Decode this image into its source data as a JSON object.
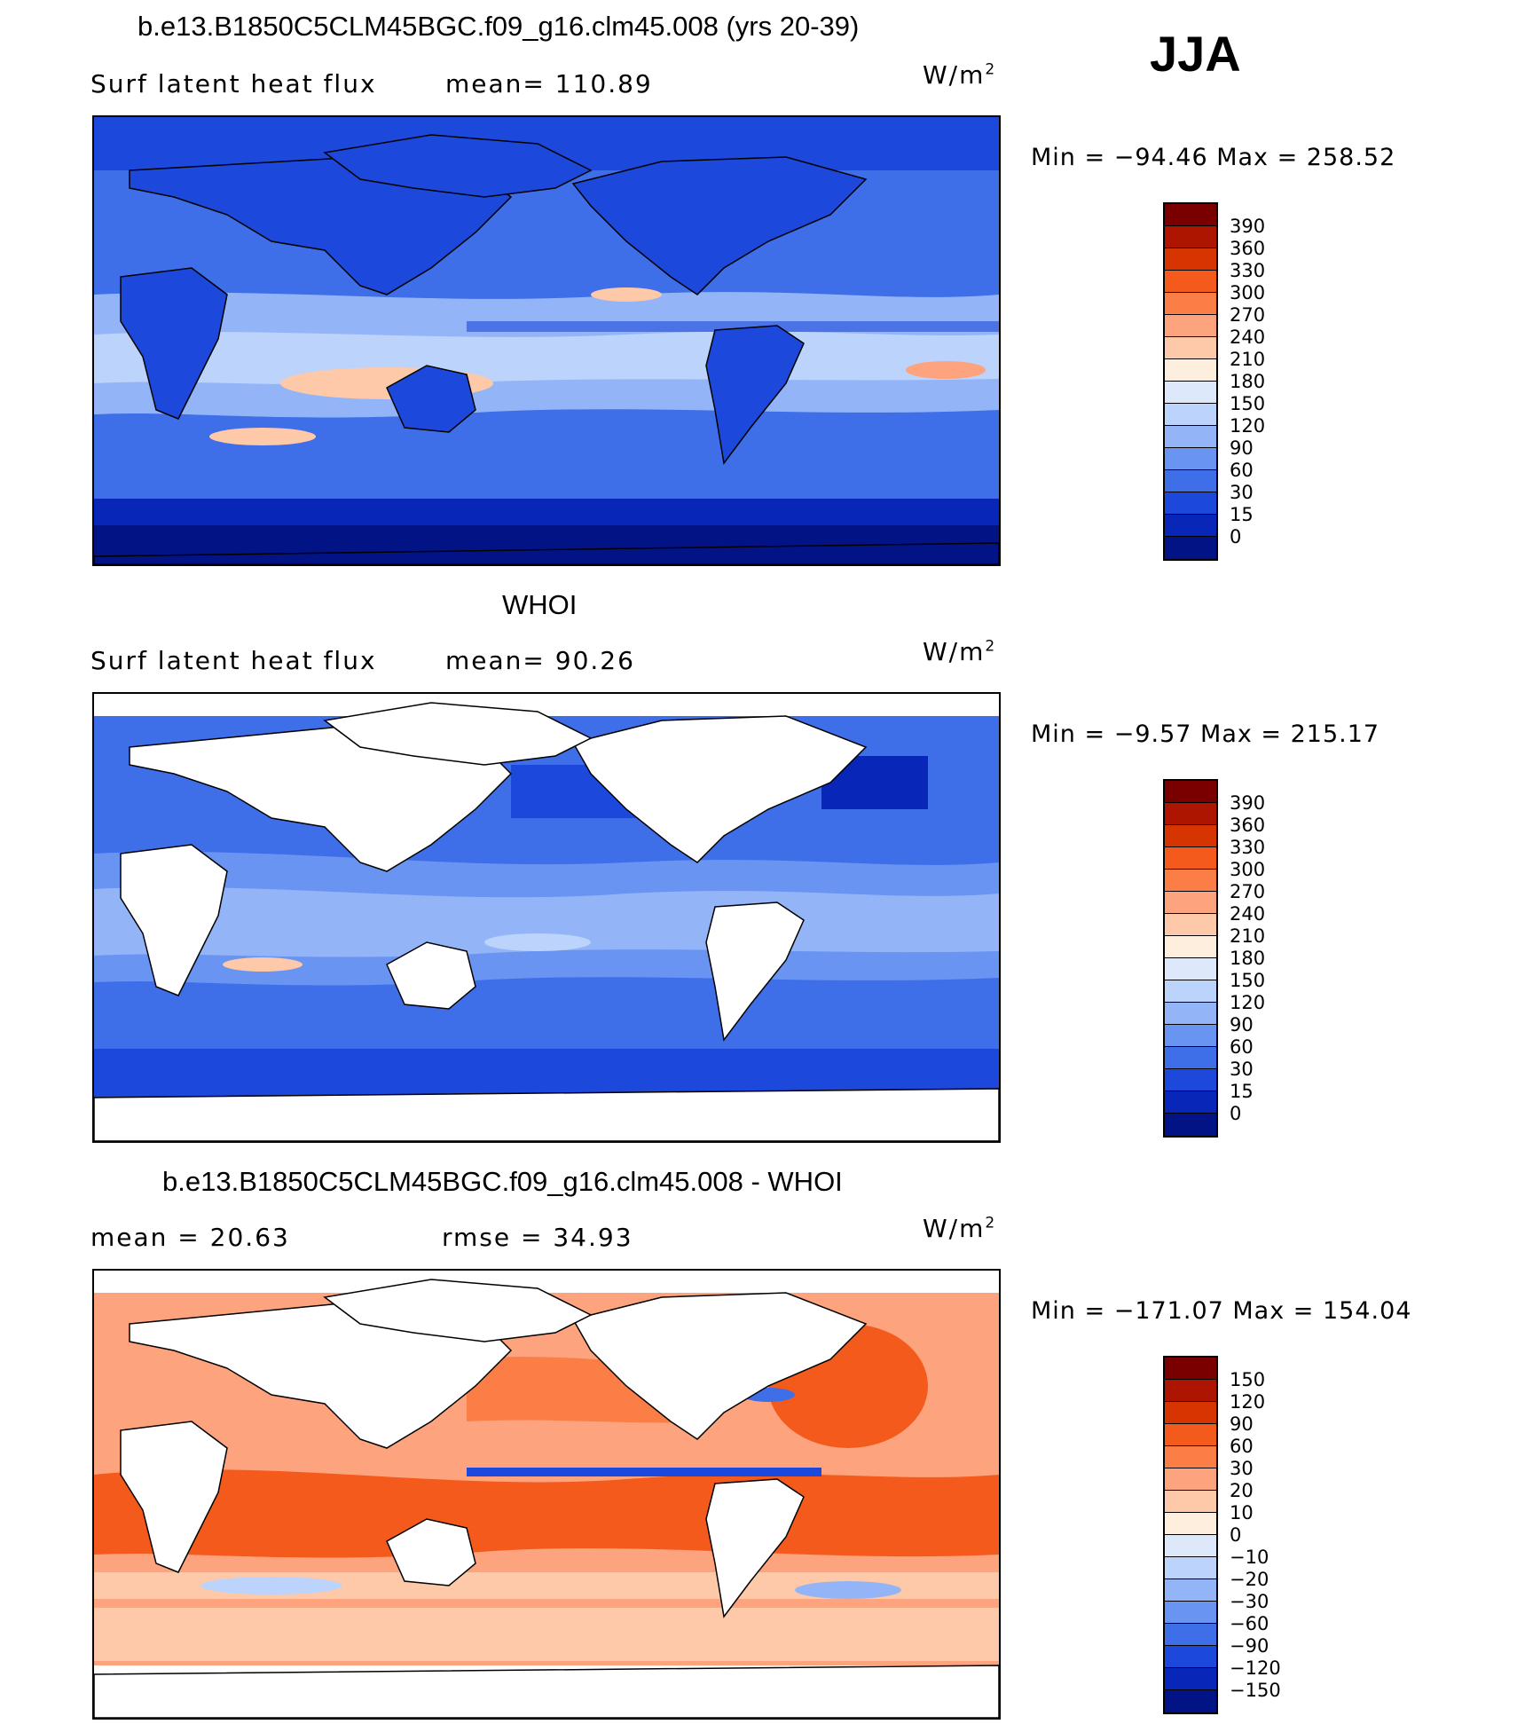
{
  "season": "JJA",
  "panels": [
    {
      "title": "b.e13.B1850C5CLM45BGC.f09_g16.clm45.008 (yrs 20-39)",
      "left_label": "Surf latent heat flux",
      "center_label": "mean= 110.89",
      "units": "W/m",
      "units_exp": "2",
      "stats": "Min = −94.46 Max = 258.52",
      "colorbar_labels": [
        "390",
        "360",
        "330",
        "300",
        "270",
        "240",
        "210",
        "180",
        "150",
        "120",
        "90",
        "60",
        "30",
        "15",
        "0"
      ]
    },
    {
      "title": "WHOI",
      "left_label": "Surf latent heat flux",
      "center_label": "mean= 90.26",
      "units": "W/m",
      "units_exp": "2",
      "stats": "Min = −9.57 Max = 215.17",
      "colorbar_labels": [
        "390",
        "360",
        "330",
        "300",
        "270",
        "240",
        "210",
        "180",
        "150",
        "120",
        "90",
        "60",
        "30",
        "15",
        "0"
      ]
    },
    {
      "title": "b.e13.B1850C5CLM45BGC.f09_g16.clm45.008 - WHOI",
      "left_label": "mean = 20.63",
      "center_label": "rmse = 34.93",
      "units": "W/m",
      "units_exp": "2",
      "stats": "Min = −171.07 Max = 154.04",
      "colorbar_labels": [
        "150",
        "120",
        "90",
        "60",
        "30",
        "20",
        "10",
        "0",
        "−10",
        "−20",
        "−30",
        "−60",
        "−90",
        "−120",
        "−150"
      ]
    }
  ],
  "palettes": {
    "abs": [
      "#7a0000",
      "#ad1500",
      "#d63400",
      "#f35a1c",
      "#fa7e45",
      "#fda37d",
      "#fdc9a8",
      "#feeede",
      "#dde9fb",
      "#bcd3fb",
      "#93b5f8",
      "#6a94f1",
      "#3f6ee9",
      "#1c48db",
      "#0826b8",
      "#021385"
    ],
    "diff": [
      "#7a0000",
      "#ad1500",
      "#d63400",
      "#f35a1c",
      "#fa7e45",
      "#fda37d",
      "#fdc9a8",
      "#feeede",
      "#dde9fb",
      "#bcd3fb",
      "#93b5f8",
      "#6a94f1",
      "#3f6ee9",
      "#1c48db",
      "#0826b8",
      "#021385"
    ]
  }
}
